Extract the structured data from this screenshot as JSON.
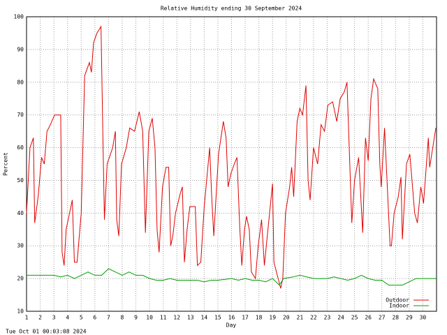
{
  "chart_data": {
    "type": "line",
    "title": "Relative Humidity ending 30 September 2024",
    "y_label": "Percent",
    "x_label": "Day",
    "footer": "Tue Oct 01 00:03:08 2024",
    "xlim": [
      1,
      31
    ],
    "xticks": [
      1,
      2,
      3,
      4,
      5,
      6,
      7,
      8,
      9,
      10,
      11,
      12,
      13,
      14,
      15,
      16,
      17,
      18,
      19,
      20,
      21,
      22,
      23,
      24,
      25,
      26,
      27,
      28,
      29,
      30
    ],
    "ylim": [
      10,
      100
    ],
    "yticks": [
      10,
      20,
      30,
      40,
      50,
      60,
      70,
      80,
      90,
      100
    ],
    "grid": true,
    "legend": "bottom-right",
    "series": [
      {
        "name": "Outdoor",
        "color": "#e00000",
        "x": [
          1.0,
          1.25,
          1.5,
          1.6,
          1.85,
          2.1,
          2.3,
          2.5,
          2.75,
          3.05,
          3.5,
          3.6,
          3.75,
          3.9,
          4.15,
          4.35,
          4.5,
          4.7,
          5.0,
          5.25,
          5.6,
          5.75,
          5.9,
          6.15,
          6.45,
          6.6,
          6.7,
          6.9,
          7.3,
          7.5,
          7.6,
          7.75,
          7.95,
          8.3,
          8.55,
          8.9,
          9.25,
          9.5,
          9.7,
          9.95,
          10.2,
          10.4,
          10.55,
          10.7,
          10.95,
          11.2,
          11.4,
          11.55,
          11.7,
          11.9,
          12.25,
          12.4,
          12.55,
          12.75,
          12.95,
          13.35,
          13.5,
          13.75,
          14.0,
          14.4,
          14.55,
          14.7,
          15.05,
          15.4,
          15.6,
          15.75,
          15.95,
          16.2,
          16.4,
          16.6,
          16.75,
          16.95,
          17.1,
          17.3,
          17.45,
          17.75,
          17.95,
          18.2,
          18.4,
          19.0,
          19.1,
          19.6,
          19.75,
          19.95,
          20.25,
          20.4,
          20.55,
          20.8,
          21.0,
          21.2,
          21.45,
          21.6,
          21.75,
          22.0,
          22.3,
          22.55,
          22.8,
          23.05,
          23.4,
          23.7,
          23.95,
          24.25,
          24.45,
          24.8,
          25.0,
          25.3,
          25.6,
          25.8,
          26.0,
          26.2,
          26.4,
          26.7,
          26.85,
          26.95,
          27.2,
          27.6,
          27.7,
          27.9,
          28.2,
          28.4,
          28.5,
          28.8,
          29.05,
          29.4,
          29.6,
          29.85,
          30.05,
          30.4,
          30.5,
          30.95
        ],
        "values": [
          40,
          60,
          63,
          37,
          45,
          57,
          55,
          65,
          67,
          70,
          70,
          28,
          24,
          35,
          40,
          44,
          25,
          25,
          40,
          82,
          86,
          83,
          92,
          95,
          97,
          60,
          38,
          55,
          60,
          65,
          38,
          33,
          55,
          60,
          66,
          65,
          71,
          65,
          34,
          65,
          69,
          60,
          35,
          28,
          48,
          54,
          54,
          30,
          33,
          40,
          46,
          48,
          25,
          35,
          42,
          42,
          24,
          25,
          42,
          60,
          45,
          33,
          58,
          68,
          63,
          48,
          52,
          55,
          57,
          36,
          24,
          35,
          39,
          35,
          22,
          20,
          30,
          38,
          24,
          49,
          25,
          17,
          20,
          40,
          48,
          54,
          45,
          68,
          72,
          70,
          79,
          50,
          44,
          60,
          55,
          67,
          65,
          73,
          74,
          68,
          75,
          77,
          80,
          37,
          50,
          57,
          34,
          63,
          56,
          75,
          81,
          78,
          55,
          48,
          66,
          30,
          30,
          40,
          45,
          51,
          32,
          55,
          58,
          40,
          37,
          48,
          43,
          63,
          54,
          66
        ]
      },
      {
        "name": "Indoor",
        "color": "#00a000",
        "x": [
          1,
          3,
          3.5,
          4,
          4.5,
          5,
          5.5,
          6,
          6.5,
          7,
          7.5,
          8,
          8.5,
          9,
          9.5,
          10,
          10.5,
          11,
          11.5,
          12,
          13,
          13.5,
          14,
          14.5,
          15,
          16,
          16.5,
          17,
          17.5,
          18,
          18.5,
          19,
          19.5,
          19.8,
          20.5,
          21,
          22,
          23,
          23.5,
          24,
          24.5,
          25,
          25.5,
          26,
          26.5,
          27,
          27.5,
          28,
          28.5,
          29,
          29.5,
          30,
          30.5,
          31
        ],
        "values": [
          21,
          21,
          20.5,
          21,
          20,
          21,
          22,
          21,
          21,
          23,
          22,
          21,
          22,
          21,
          21,
          20,
          19.5,
          19.5,
          20,
          19.5,
          19.5,
          19.5,
          19,
          19.5,
          19.5,
          20,
          19.5,
          20,
          19.5,
          19.5,
          19,
          20,
          18,
          20,
          20.5,
          21,
          20,
          20,
          20.5,
          20,
          19.5,
          20,
          21,
          20,
          19.5,
          19.5,
          18,
          18,
          18,
          19,
          20,
          20,
          20,
          20
        ]
      }
    ]
  }
}
